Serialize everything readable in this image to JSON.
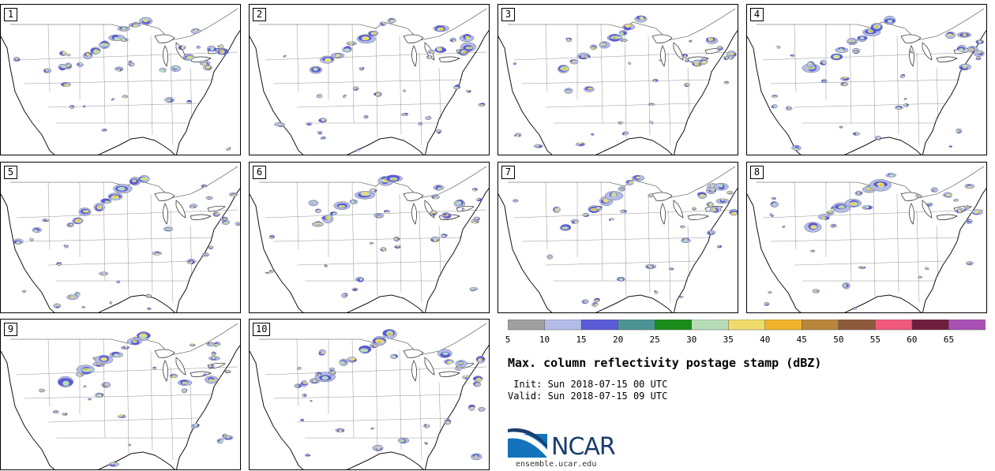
{
  "panels": [
    {
      "label": "1"
    },
    {
      "label": "2"
    },
    {
      "label": "3"
    },
    {
      "label": "4"
    },
    {
      "label": "5"
    },
    {
      "label": "6"
    },
    {
      "label": "7"
    },
    {
      "label": "8"
    },
    {
      "label": "9"
    },
    {
      "label": "10"
    }
  ],
  "colorbar": {
    "colors": [
      "#a0a0a0",
      "#b4bce8",
      "#5a5ad6",
      "#4c9494",
      "#1a8c1a",
      "#b8dcb8",
      "#f0dc6a",
      "#f0b42c",
      "#b8863c",
      "#8c5a3c",
      "#f0587c",
      "#6e1e3c",
      "#a850b4"
    ],
    "tick_labels": [
      "5",
      "10",
      "15",
      "20",
      "25",
      "30",
      "35",
      "40",
      "45",
      "50",
      "55",
      "60",
      "65"
    ]
  },
  "title": "Max. column reflectivity postage stamp (dBZ)",
  "init": " Init: Sun 2018-07-15 00 UTC",
  "valid": "Valid: Sun 2018-07-15 09 UTC",
  "logo": {
    "text": "NCAR",
    "url": "ensemble.ucar.edu"
  }
}
